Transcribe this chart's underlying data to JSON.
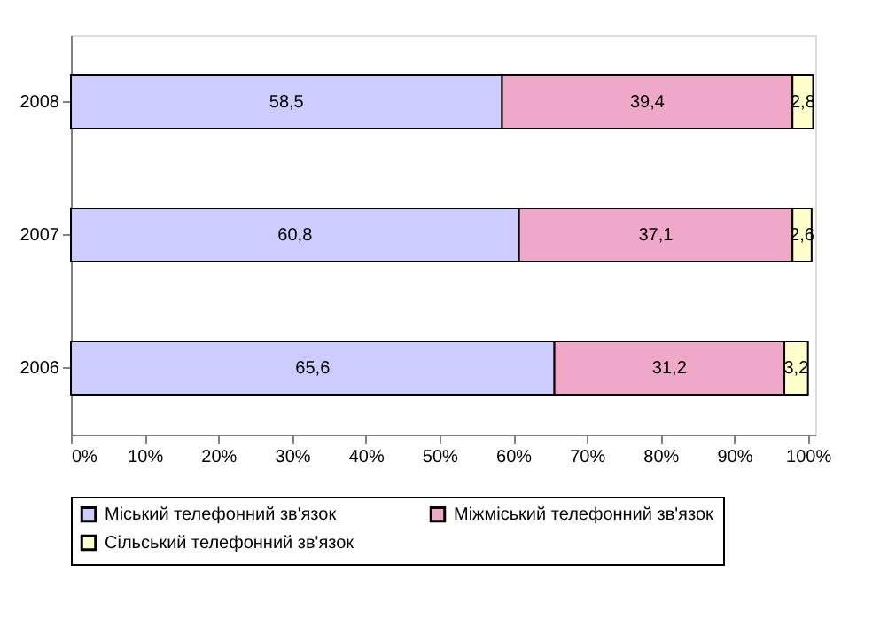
{
  "chart_data": {
    "type": "bar",
    "orientation": "horizontal",
    "stacked": true,
    "categories": [
      "2008",
      "2007",
      "2006"
    ],
    "series": [
      {
        "name": "Міський телефонний зв'язок",
        "color": "#ccccff",
        "values": [
          58.5,
          60.8,
          65.6
        ],
        "value_labels": [
          "58,5",
          "60,8",
          "65,6"
        ]
      },
      {
        "name": "Міжміський телефонний зв'язок",
        "color": "#f0a8c8",
        "values": [
          39.4,
          37.1,
          31.2
        ],
        "value_labels": [
          "39,4",
          "37,1",
          "31,2"
        ]
      },
      {
        "name": "Сільський телефонний зв'язок",
        "color": "#ffffcc",
        "values": [
          2.8,
          2.6,
          3.2
        ],
        "value_labels": [
          "2,8",
          "2,6",
          "3,2"
        ]
      }
    ],
    "xlim": [
      0,
      101
    ],
    "xticks": [
      {
        "value": 0,
        "label": "0%"
      },
      {
        "value": 10,
        "label": "10%"
      },
      {
        "value": 20,
        "label": "20%"
      },
      {
        "value": 30,
        "label": "30%"
      },
      {
        "value": 40,
        "label": "40%"
      },
      {
        "value": 50,
        "label": "50%"
      },
      {
        "value": 60,
        "label": "60%"
      },
      {
        "value": 70,
        "label": "70%"
      },
      {
        "value": 80,
        "label": "80%"
      },
      {
        "value": 90,
        "label": "90%"
      },
      {
        "value": 100,
        "label": "100%"
      }
    ],
    "grid": false,
    "legend": "bottom"
  }
}
